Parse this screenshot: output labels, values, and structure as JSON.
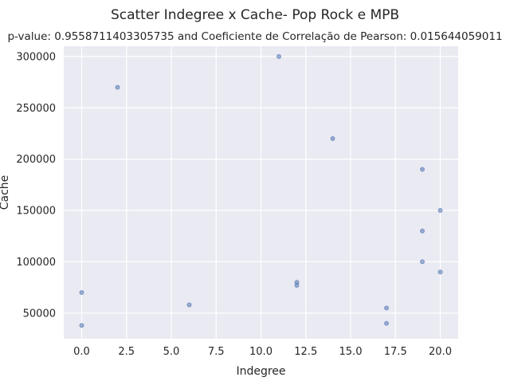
{
  "chart_data": {
    "type": "scatter",
    "title": "Scatter Indegree x Cache- Pop Rock e MPB",
    "subtitle": "p-value: 0.9558711403305735 and Coeficiente de Correlação de Pearson: 0.015644059011",
    "xlabel": "Indegree",
    "ylabel": "Cache",
    "xlim": [
      -1,
      21
    ],
    "ylim": [
      25000,
      310000
    ],
    "xticks": [
      0,
      2.5,
      5,
      7.5,
      10,
      12.5,
      15,
      17.5,
      20
    ],
    "xtick_labels": [
      "0.0",
      "2.5",
      "5.0",
      "7.5",
      "10.0",
      "12.5",
      "15.0",
      "17.5",
      "20.0"
    ],
    "yticks": [
      50000,
      100000,
      150000,
      200000,
      250000,
      300000
    ],
    "ytick_labels": [
      "50000",
      "100000",
      "150000",
      "200000",
      "250000",
      "300000"
    ],
    "grid": true,
    "background": "#eaeaf2",
    "point_color": "#4c72b0",
    "points": [
      {
        "x": 0,
        "y": 70000
      },
      {
        "x": 0,
        "y": 38000
      },
      {
        "x": 2,
        "y": 270000
      },
      {
        "x": 6,
        "y": 58000
      },
      {
        "x": 11,
        "y": 300000
      },
      {
        "x": 12,
        "y": 80000
      },
      {
        "x": 12,
        "y": 77000
      },
      {
        "x": 14,
        "y": 220000
      },
      {
        "x": 17,
        "y": 55000
      },
      {
        "x": 17,
        "y": 40000
      },
      {
        "x": 19,
        "y": 190000
      },
      {
        "x": 19,
        "y": 130000
      },
      {
        "x": 19,
        "y": 100000
      },
      {
        "x": 20,
        "y": 150000
      },
      {
        "x": 20,
        "y": 90000
      }
    ]
  }
}
